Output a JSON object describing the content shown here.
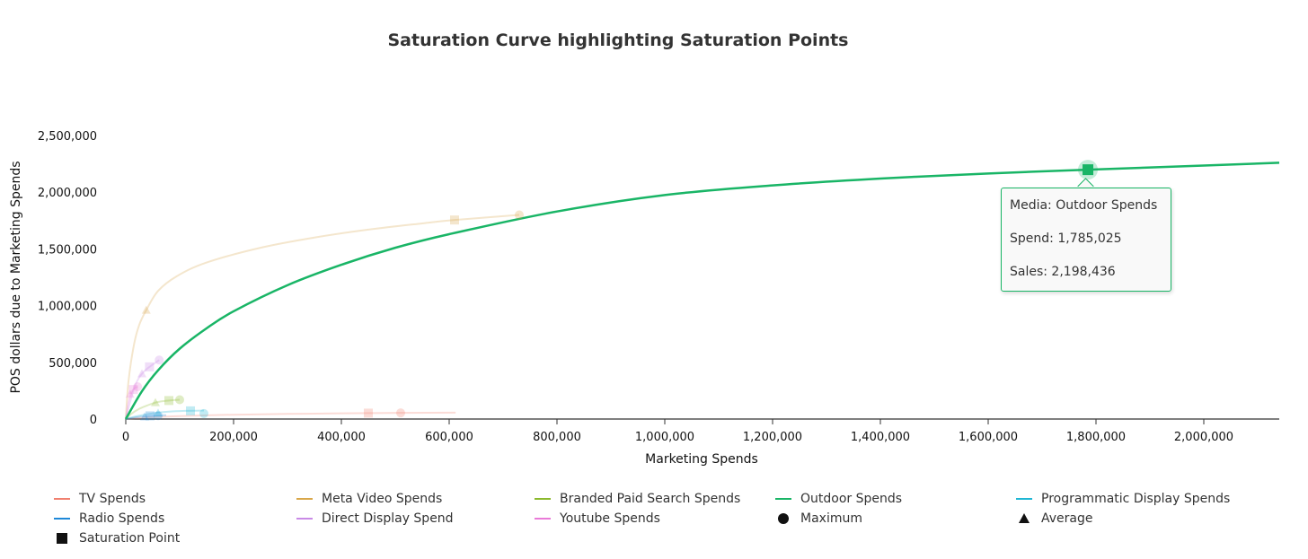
{
  "chart_data": {
    "type": "line",
    "title": "Saturation Curve highlighting Saturation Points",
    "xlabel": "Marketing Spends",
    "ylabel": "POS dollars due to Marketing Spends",
    "xlim": [
      0,
      2150000
    ],
    "ylim": [
      0,
      2500000
    ],
    "x_ticks": [
      "0",
      "200,000",
      "400,000",
      "600,000",
      "800,000",
      "1,000,000",
      "1,200,000",
      "1,400,000",
      "1,600,000",
      "1,800,000",
      "2,000,000"
    ],
    "y_ticks": [
      "0",
      "500,000",
      "1,000,000",
      "1,500,000",
      "2,000,000",
      "2,500,000"
    ],
    "series": [
      {
        "name": "TV Spends",
        "color": "#f0806f",
        "faded": true,
        "x": [
          0,
          30000,
          100000,
          200000,
          300000,
          400000,
          450000,
          510000,
          612000
        ],
        "y": [
          0,
          12000,
          26000,
          38000,
          45000,
          50000,
          52000,
          54000,
          56000
        ],
        "max": [
          510000,
          54000
        ],
        "avg": null,
        "sat": [
          450000,
          52000
        ]
      },
      {
        "name": "Meta Video Spends",
        "color": "#d9a74a",
        "faded": true,
        "x": [
          0,
          5000,
          15000,
          25000,
          38000,
          60000,
          95000,
          150000,
          250000,
          350000,
          450000,
          550000,
          610000,
          730000
        ],
        "y": [
          0,
          330000,
          650000,
          830000,
          960000,
          1130000,
          1260000,
          1380000,
          1510000,
          1600000,
          1670000,
          1725000,
          1755000,
          1800000
        ],
        "max": [
          730000,
          1800000
        ],
        "avg": [
          38000,
          960000
        ],
        "sat": [
          610000,
          1755000
        ]
      },
      {
        "name": "Branded Paid Search Spends",
        "color": "#8bb92d",
        "faded": true,
        "x": [
          0,
          10000,
          25000,
          40000,
          55000,
          70000,
          85000,
          100000
        ],
        "y": [
          0,
          45000,
          90000,
          120000,
          145000,
          158000,
          165000,
          170000
        ],
        "max": [
          100000,
          170000
        ],
        "avg": [
          55000,
          145000
        ],
        "sat": [
          80000,
          163000
        ]
      },
      {
        "name": "Outdoor Spends",
        "color": "#19b566",
        "faded": false,
        "x": [
          0,
          30000,
          60000,
          100000,
          150000,
          200000,
          300000,
          400000,
          500000,
          600000,
          800000,
          1000000,
          1200000,
          1400000,
          1600000,
          1785025,
          2000000,
          2140000
        ],
        "y": [
          0,
          245000,
          430000,
          620000,
          800000,
          950000,
          1180000,
          1360000,
          1510000,
          1630000,
          1830000,
          1975000,
          2060000,
          2120000,
          2165000,
          2198436,
          2235000,
          2260000
        ],
        "max": null,
        "avg": null,
        "sat": [
          1785025,
          2198436
        ]
      },
      {
        "name": "Programmatic Display Spends",
        "color": "#1fb6d4",
        "faded": true,
        "x": [
          0,
          20000,
          50000,
          80000,
          110000,
          145000
        ],
        "y": [
          0,
          25000,
          50000,
          65000,
          72000,
          75000
        ],
        "max": [
          145000,
          48000
        ],
        "avg": [
          60000,
          52000
        ],
        "sat": [
          120000,
          72000
        ]
      },
      {
        "name": "Radio Spends",
        "color": "#1e88d8",
        "faded": true,
        "x": [
          0,
          15000,
          30000,
          45000,
          60000,
          75000
        ],
        "y": [
          0,
          12000,
          22000,
          28000,
          32000,
          34000
        ],
        "max": [
          60000,
          30000
        ],
        "avg": [
          35000,
          20000
        ],
        "sat": [
          45000,
          28000
        ]
      },
      {
        "name": "Direct Display Spend",
        "color": "#c98ae6",
        "faded": true,
        "x": [
          0,
          8000,
          16000,
          24000,
          32000,
          40000,
          50000,
          62000
        ],
        "y": [
          0,
          150000,
          280000,
          360000,
          410000,
          445000,
          480000,
          520000
        ],
        "max": [
          62000,
          520000
        ],
        "avg": [
          30000,
          400000
        ],
        "sat": [
          44000,
          460000
        ]
      },
      {
        "name": "Youtube Spends",
        "color": "#e97ad8",
        "faded": true,
        "x": [
          0,
          3000,
          6000,
          10000,
          14000,
          18000,
          22000
        ],
        "y": [
          0,
          100000,
          170000,
          230000,
          260000,
          275000,
          285000
        ],
        "max": [
          22000,
          285000
        ],
        "avg": [
          8000,
          220000
        ],
        "sat": [
          14000,
          260000
        ]
      }
    ],
    "extra_legend": [
      {
        "name": "Maximum",
        "symbol": "circle"
      },
      {
        "name": "Average",
        "symbol": "triangle"
      },
      {
        "name": "Saturation Point",
        "symbol": "square"
      }
    ],
    "tooltip": {
      "media": "Media: Outdoor Spends",
      "spend": "Spend: 1,785,025",
      "sales": "Sales: 2,198,436"
    },
    "grid": false,
    "legend_position": "bottom"
  }
}
